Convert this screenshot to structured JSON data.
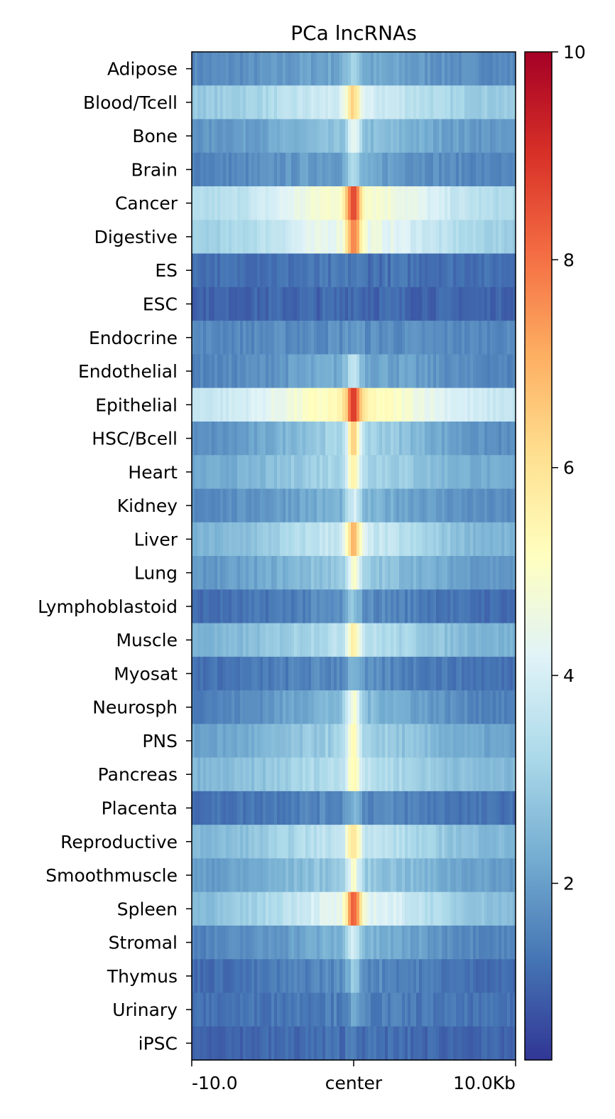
{
  "chart_data": {
    "type": "heatmap",
    "title": "PCa lncRNAs",
    "x_tick_labels": [
      "-10.0",
      "center",
      "10.0Kb"
    ],
    "x_range_kb": [
      -10,
      10
    ],
    "colormap": "RdYlBu_r",
    "colormap_stops": [
      "#313695",
      "#4575b4",
      "#74add1",
      "#abd9e9",
      "#e0f3f8",
      "#ffffbf",
      "#fee090",
      "#fdae61",
      "#f46d43",
      "#d73027",
      "#a50026"
    ],
    "colorbar": {
      "min": 0.3,
      "max": 10,
      "ticks": [
        2,
        4,
        6,
        8,
        10
      ]
    },
    "rows": [
      {
        "name": "Adipose",
        "peak": 3.6,
        "edge": 1.6
      },
      {
        "name": "Blood/Tcell",
        "peak": 7.0,
        "edge": 2.8
      },
      {
        "name": "Bone",
        "peak": 4.8,
        "edge": 1.8
      },
      {
        "name": "Brain",
        "peak": 3.6,
        "edge": 1.5
      },
      {
        "name": "Cancer",
        "peak": 10.0,
        "edge": 3.2
      },
      {
        "name": "Digestive",
        "peak": 9.0,
        "edge": 2.9
      },
      {
        "name": "ES",
        "peak": 1.4,
        "edge": 1.2
      },
      {
        "name": "ESC",
        "peak": 1.3,
        "edge": 1.0
      },
      {
        "name": "Endocrine",
        "peak": 2.0,
        "edge": 1.6
      },
      {
        "name": "Endothelial",
        "peak": 4.2,
        "edge": 1.5
      },
      {
        "name": "Epithelial",
        "peak": 10.0,
        "edge": 3.6
      },
      {
        "name": "HSC/Bcell",
        "peak": 7.2,
        "edge": 1.6
      },
      {
        "name": "Heart",
        "peak": 6.2,
        "edge": 2.1
      },
      {
        "name": "Kidney",
        "peak": 4.4,
        "edge": 1.6
      },
      {
        "name": "Liver",
        "peak": 7.8,
        "edge": 2.3
      },
      {
        "name": "Lung",
        "peak": 5.6,
        "edge": 1.8
      },
      {
        "name": "Lymphoblastoid",
        "peak": 3.2,
        "edge": 1.1
      },
      {
        "name": "Muscle",
        "peak": 6.5,
        "edge": 2.3
      },
      {
        "name": "Myosat",
        "peak": 2.8,
        "edge": 1.2
      },
      {
        "name": "Neurosph",
        "peak": 5.6,
        "edge": 1.4
      },
      {
        "name": "PNS",
        "peak": 5.8,
        "edge": 2.0
      },
      {
        "name": "Pancreas",
        "peak": 6.2,
        "edge": 2.4
      },
      {
        "name": "Placenta",
        "peak": 2.8,
        "edge": 1.2
      },
      {
        "name": "Reproductive",
        "peak": 7.0,
        "edge": 2.4
      },
      {
        "name": "Smoothmuscle",
        "peak": 5.4,
        "edge": 1.9
      },
      {
        "name": "Spleen",
        "peak": 9.4,
        "edge": 2.5
      },
      {
        "name": "Stromal",
        "peak": 4.6,
        "edge": 1.5
      },
      {
        "name": "Thymus",
        "peak": 3.2,
        "edge": 1.1
      },
      {
        "name": "Urinary",
        "peak": 2.2,
        "edge": 1.2
      },
      {
        "name": "iPSC",
        "peak": 1.6,
        "edge": 1.0
      }
    ]
  }
}
